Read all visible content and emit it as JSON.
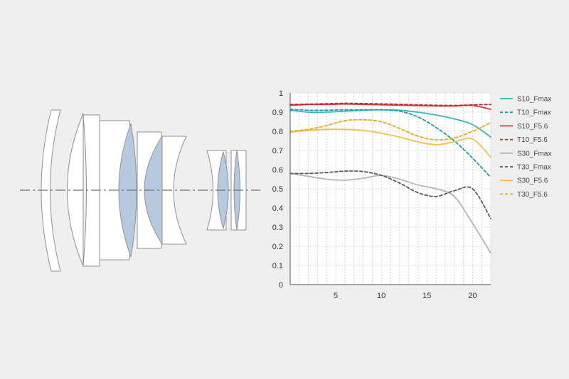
{
  "colors": {
    "background": "#efefef",
    "lens_fill": "#ffffff",
    "lens_stroke": "#8d9399",
    "lens_accent": "#b6c9de",
    "axis_line": "#6f6f6f",
    "grid": "#cccccc",
    "tick_text": "#333333"
  },
  "lens_diagram": {
    "elements": 10,
    "groups": 2,
    "icon": "lens-cross-section-diagram"
  },
  "chart_data": {
    "type": "line",
    "title": "",
    "xlabel": "",
    "ylabel": "",
    "xlim": [
      0,
      22
    ],
    "ylim": [
      0,
      1
    ],
    "x_ticks": [
      5,
      10,
      15,
      20
    ],
    "x_tick_labels": [
      "5",
      "10",
      "15",
      "20"
    ],
    "y_ticks": [
      0,
      0.1,
      0.2,
      0.3,
      0.4,
      0.5,
      0.6,
      0.7,
      0.8,
      0.9,
      1
    ],
    "y_tick_labels": [
      "0",
      "0.1",
      "0.2",
      "0.3",
      "0.4",
      "0.5",
      "0.6",
      "0.7",
      "0.8",
      "0.9",
      "1"
    ],
    "grid": "dashed",
    "legend_position": "right",
    "x": [
      0,
      2,
      4,
      6,
      8,
      10,
      12,
      14,
      16,
      18,
      20,
      22
    ],
    "series": [
      {
        "name": "S10_Fmax",
        "color": "#3ab4bd",
        "dash": false,
        "values": [
          0.91,
          0.9,
          0.9,
          0.905,
          0.91,
          0.912,
          0.91,
          0.9,
          0.885,
          0.865,
          0.835,
          0.77
        ]
      },
      {
        "name": "T10_Fmax",
        "color": "#1a9ca8",
        "dash": true,
        "values": [
          0.915,
          0.91,
          0.91,
          0.912,
          0.912,
          0.912,
          0.905,
          0.875,
          0.82,
          0.75,
          0.66,
          0.56
        ]
      },
      {
        "name": "S10_F5.6",
        "color": "#d33e3e",
        "dash": false,
        "values": [
          0.935,
          0.94,
          0.94,
          0.942,
          0.94,
          0.938,
          0.936,
          0.934,
          0.932,
          0.932,
          0.935,
          0.915
        ]
      },
      {
        "name": "T10_F5.6",
        "color": "#c2282f",
        "dash": true,
        "values": [
          0.94,
          0.942,
          0.944,
          0.946,
          0.945,
          0.943,
          0.941,
          0.938,
          0.936,
          0.935,
          0.938,
          0.94
        ]
      },
      {
        "name": "S30_Fmax",
        "color": "#b5b5b5",
        "dash": false,
        "values": [
          0.58,
          0.565,
          0.55,
          0.545,
          0.555,
          0.57,
          0.55,
          0.52,
          0.5,
          0.46,
          0.32,
          0.165
        ]
      },
      {
        "name": "T30_Fmax",
        "color": "#5a5a5a",
        "dash": true,
        "values": [
          0.58,
          0.58,
          0.585,
          0.592,
          0.59,
          0.57,
          0.53,
          0.48,
          0.46,
          0.49,
          0.5,
          0.345
        ]
      },
      {
        "name": "S30_F5.6",
        "color": "#f2c04e",
        "dash": false,
        "values": [
          0.795,
          0.805,
          0.81,
          0.81,
          0.805,
          0.79,
          0.77,
          0.745,
          0.73,
          0.745,
          0.76,
          0.665
        ]
      },
      {
        "name": "T30_F5.6",
        "color": "#efa520",
        "dash": true,
        "values": [
          0.8,
          0.81,
          0.83,
          0.855,
          0.86,
          0.85,
          0.815,
          0.775,
          0.755,
          0.765,
          0.8,
          0.845
        ]
      }
    ]
  }
}
